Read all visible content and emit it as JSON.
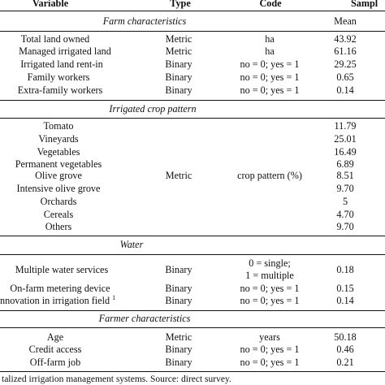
{
  "header": {
    "variable": "Variable",
    "type": "Type",
    "code": "Code",
    "sample": "Sampl"
  },
  "sections": {
    "farm": {
      "title": "Farm characteristics",
      "mean_label": "Mean",
      "rows": [
        {
          "variable": "Total land owned",
          "type": "Metric",
          "code": "ha",
          "mean": "43.92"
        },
        {
          "variable": "Managed irrigated land",
          "type": "Metric",
          "code": "ha",
          "mean": "61.16"
        },
        {
          "variable": "Irrigated land rent-in",
          "type": "Binary",
          "code": "no = 0; yes = 1",
          "mean": "29.25"
        },
        {
          "variable": "Family workers",
          "type": "Binary",
          "code": "no = 0; yes = 1",
          "mean": "0.65"
        },
        {
          "variable": "Extra-family workers",
          "type": "Binary",
          "code": "no = 0; yes = 1",
          "mean": "0.14"
        }
      ]
    },
    "crop": {
      "title": "Irrigated crop pattern",
      "type": "Metric",
      "code": "crop pattern (%)",
      "rows": [
        {
          "variable": "Tomato",
          "mean": "11.79"
        },
        {
          "variable": "Vineyards",
          "mean": "25.01"
        },
        {
          "variable": "Vegetables",
          "mean": "16.49"
        },
        {
          "variable": "Permanent vegetables",
          "mean": "6.89"
        },
        {
          "variable": "Olive grove",
          "mean": "8.51"
        },
        {
          "variable": "Intensive olive grove",
          "mean": "9.70"
        },
        {
          "variable": "Orchards",
          "mean": "5"
        },
        {
          "variable": "Cereals",
          "mean": "4.70"
        },
        {
          "variable": "Others",
          "mean": "9.70"
        }
      ]
    },
    "water": {
      "title": "Water",
      "rows": [
        {
          "variable": "Multiple water services",
          "type": "Binary",
          "code_line1": "0 = single;",
          "code_line2": "1 = multiple",
          "mean": "0.18"
        },
        {
          "variable": "On-farm metering device",
          "type": "Binary",
          "code": "no = 0; yes = 1",
          "mean": "0.15"
        },
        {
          "variable": "nnovation in irrigation field",
          "sup": "1",
          "type": "Binary",
          "code": "no = 0; yes = 1",
          "mean": "0.14"
        }
      ]
    },
    "farmer": {
      "title": "Farmer characteristics",
      "rows": [
        {
          "variable": "Age",
          "type": "Metric",
          "code": "years",
          "mean": "50.18"
        },
        {
          "variable": "Credit access",
          "type": "Binary",
          "code": "no = 0; yes = 1",
          "mean": "0.46"
        },
        {
          "variable": "Off-farm job",
          "type": "Binary",
          "code": "no = 0; yes = 1",
          "mean": "0.21"
        }
      ]
    }
  },
  "footnote": "talized irrigation management systems. Source: direct survey."
}
